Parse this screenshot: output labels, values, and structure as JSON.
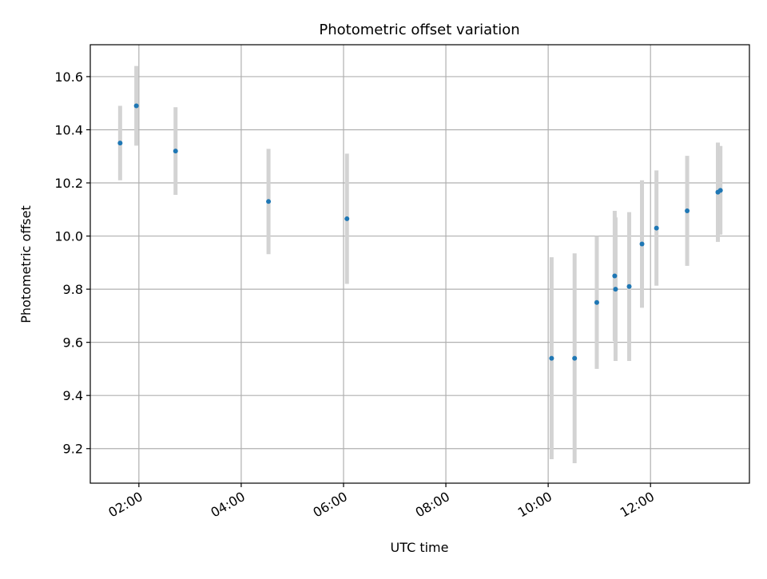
{
  "chart_data": {
    "type": "scatter",
    "title": "Photometric offset variation",
    "xlabel": "UTC time",
    "ylabel": "Photometric offset",
    "x_tick_labels": [
      "02:00",
      "04:00",
      "06:00",
      "08:00",
      "10:00",
      "12:00"
    ],
    "x_ticks_hours": [
      2,
      4,
      6,
      8,
      10,
      12
    ],
    "y_ticks": [
      9.2,
      9.4,
      9.6,
      9.8,
      10.0,
      10.2,
      10.4,
      10.6
    ],
    "y_tick_labels": [
      "9.2",
      "9.4",
      "9.6",
      "9.8",
      "10.0",
      "10.2",
      "10.4",
      "10.6"
    ],
    "xlim": [
      "01:03",
      "13:56"
    ],
    "ylim": [
      9.07,
      10.72
    ],
    "grid": true,
    "point_color": "#1f77b4",
    "errorbar_color": "#d3d3d3",
    "points": [
      {
        "x": "01:38",
        "y": 10.35,
        "err": 0.14
      },
      {
        "x": "01:57",
        "y": 10.49,
        "err": 0.15
      },
      {
        "x": "02:43",
        "y": 10.32,
        "err": 0.165
      },
      {
        "x": "04:32",
        "y": 10.13,
        "err": 0.198
      },
      {
        "x": "06:04",
        "y": 10.065,
        "err": 0.245
      },
      {
        "x": "10:04",
        "y": 9.54,
        "err": 0.38
      },
      {
        "x": "10:31",
        "y": 9.54,
        "err": 0.395
      },
      {
        "x": "10:57",
        "y": 9.75,
        "err": 0.25
      },
      {
        "x": "11:18",
        "y": 9.85,
        "err": 0.245
      },
      {
        "x": "11:19",
        "y": 9.8,
        "err": 0.27
      },
      {
        "x": "11:35",
        "y": 9.81,
        "err": 0.28
      },
      {
        "x": "11:50",
        "y": 9.97,
        "err": 0.24
      },
      {
        "x": "12:07",
        "y": 10.03,
        "err": 0.217
      },
      {
        "x": "12:43",
        "y": 10.095,
        "err": 0.207
      },
      {
        "x": "13:19",
        "y": 10.165,
        "err": 0.187
      },
      {
        "x": "13:22",
        "y": 10.172,
        "err": 0.167
      }
    ]
  }
}
